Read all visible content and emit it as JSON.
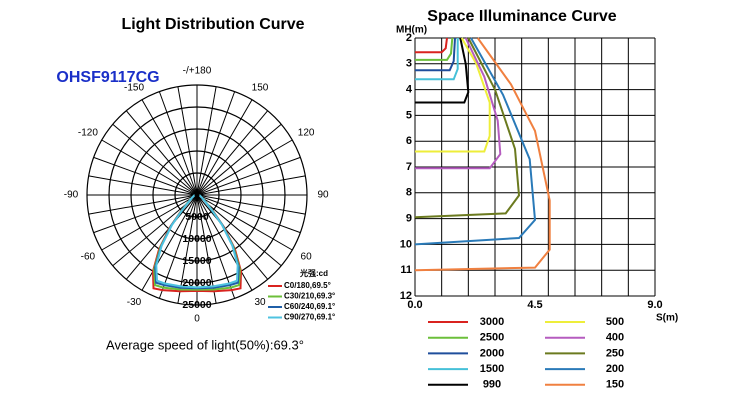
{
  "chart_data": [
    {
      "type": "polar",
      "title": "Light Distribution Curve",
      "model": "OHSF9117CG",
      "rlim": [
        0,
        25000
      ],
      "rticks": [
        0,
        5000,
        10000,
        15000,
        20000,
        25000
      ],
      "angle_ticks": [
        {
          "value": 180,
          "label": "-/+180"
        },
        -150,
        150,
        -120,
        120,
        -90,
        90,
        -60,
        60,
        -30,
        30,
        0
      ],
      "angle_grid": [
        0,
        10,
        20,
        30,
        40,
        50,
        60,
        70,
        80,
        90,
        100,
        110,
        120,
        130,
        140,
        150,
        160,
        170,
        180,
        190,
        200,
        210,
        220,
        230,
        240,
        250,
        260,
        270,
        280,
        290,
        300,
        310,
        320,
        330,
        340,
        350
      ],
      "unit_label": "光强:cd",
      "angles": [
        -90,
        -60,
        -45,
        -40,
        -35,
        -30,
        -25,
        -20,
        -10,
        0,
        10,
        20,
        25,
        30,
        35,
        40,
        45,
        60,
        90
      ],
      "series": [
        {
          "name": "C0/180,69.5°",
          "color": "#d9231f",
          "values": [
            500,
            1500,
            5000,
            9500,
            15000,
            20000,
            23400,
            23000,
            22200,
            21800,
            22200,
            23000,
            23400,
            20000,
            15000,
            9500,
            5000,
            1500,
            500
          ]
        },
        {
          "name": "C30/210,69.3°",
          "color": "#6cbf3a",
          "values": [
            500,
            1500,
            4800,
            9200,
            14500,
            19500,
            22600,
            22400,
            21800,
            21500,
            21800,
            22400,
            22600,
            19500,
            14500,
            9200,
            4800,
            1500,
            500
          ]
        },
        {
          "name": "C60/240,69.1°",
          "color": "#1f5fa8",
          "values": [
            500,
            1400,
            4600,
            9000,
            14200,
            19000,
            22000,
            21800,
            21400,
            21200,
            21400,
            21800,
            22000,
            19000,
            14200,
            9000,
            4600,
            1400,
            500
          ]
        },
        {
          "name": "C90/270,69.1°",
          "color": "#4fc3e0",
          "values": [
            500,
            1400,
            4500,
            8800,
            14000,
            18500,
            21500,
            21400,
            21100,
            21000,
            21100,
            21400,
            21500,
            18500,
            14000,
            8800,
            4500,
            1400,
            500
          ]
        }
      ],
      "footnote": "Average speed of light(50%):69.3°"
    },
    {
      "type": "line",
      "title": "Space Illuminance Curve",
      "x_label": "S(m)",
      "y_label": "MH(m)",
      "xlim": [
        0,
        9
      ],
      "xticks": [
        {
          "value": 0,
          "label": "0.0"
        },
        4.5,
        {
          "value": 9,
          "label": "9.0"
        }
      ],
      "xgrid": [
        0,
        1,
        2,
        3,
        4,
        5,
        6,
        7,
        8,
        9
      ],
      "ylim": [
        2,
        12
      ],
      "yticks": [
        2,
        3,
        4,
        5,
        6,
        7,
        8,
        9,
        10,
        11,
        12
      ],
      "y_inverted": true,
      "grid": true,
      "series": [
        {
          "name": "3000",
          "color": "#d9231f",
          "x": [
            1.2,
            1.15,
            1.0,
            0
          ],
          "values": [
            2,
            2.4,
            2.55,
            2.55
          ]
        },
        {
          "name": "2500",
          "color": "#6cbf3a",
          "x": [
            1.4,
            1.35,
            1.2,
            0
          ],
          "values": [
            2,
            2.6,
            2.85,
            2.85
          ]
        },
        {
          "name": "2000",
          "color": "#1f4e9c",
          "x": [
            1.5,
            1.45,
            1.3,
            0
          ],
          "values": [
            2,
            2.9,
            3.25,
            3.25
          ]
        },
        {
          "name": "1500",
          "color": "#45c0d8",
          "x": [
            1.6,
            1.6,
            1.45,
            0
          ],
          "values": [
            2,
            3.2,
            3.6,
            3.6
          ]
        },
        {
          "name": "990",
          "color": "#000000",
          "x": [
            1.7,
            1.9,
            2.0,
            1.85,
            0
          ],
          "values": [
            2,
            3,
            4.1,
            4.5,
            4.5
          ]
        },
        {
          "name": "500",
          "color": "#eeee3a",
          "x": [
            1.75,
            2.3,
            2.8,
            2.8,
            2.6,
            0
          ],
          "values": [
            2,
            3,
            4.5,
            5.8,
            6.4,
            6.4
          ]
        },
        {
          "name": "400",
          "color": "#b55cbf",
          "x": [
            1.9,
            2.6,
            3.1,
            3.2,
            2.8,
            0
          ],
          "values": [
            2,
            3.5,
            5.2,
            6.5,
            7.05,
            7.05
          ]
        },
        {
          "name": "250",
          "color": "#6b7a1f",
          "x": [
            2.0,
            3.0,
            3.75,
            3.9,
            3.4,
            0
          ],
          "values": [
            2,
            4,
            6.3,
            8.1,
            8.8,
            8.95
          ]
        },
        {
          "name": "200",
          "color": "#2a7ab8",
          "x": [
            2.1,
            3.3,
            4.3,
            4.5,
            3.9,
            0
          ],
          "values": [
            2,
            4.2,
            6.7,
            9.05,
            9.75,
            10.0
          ]
        },
        {
          "name": "150",
          "color": "#f08040",
          "x": [
            2.35,
            3.6,
            4.5,
            5.05,
            5.05,
            4.5,
            0
          ],
          "values": [
            2,
            3.8,
            5.6,
            8.3,
            10.2,
            10.9,
            11.0
          ]
        }
      ]
    }
  ]
}
